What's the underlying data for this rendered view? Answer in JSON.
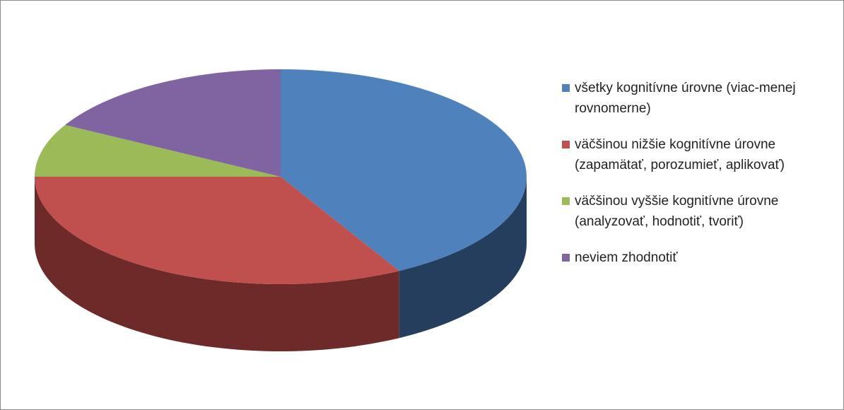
{
  "chart_data": {
    "type": "pie",
    "categories": [
      "všetky kognitívne úrovne (viac-menej rovnomerne)",
      "väčšinou nižšie kognitívne úrovne (zapamätať, porozumieť, aplikovať)",
      "väčšinou vyššie kognitívne úrovne (analyzovať, hodnotiť, tvoriť)",
      "neviem zhodnotiť"
    ],
    "values": [
      42,
      33,
      8,
      17
    ],
    "colors": [
      "#4f81bd",
      "#c0504d",
      "#9bbb59",
      "#8064a2"
    ],
    "side_colors": [
      "#253e5e",
      "#6e2a28",
      "#5a6e32",
      "#4a3a60"
    ],
    "legend": "right"
  }
}
